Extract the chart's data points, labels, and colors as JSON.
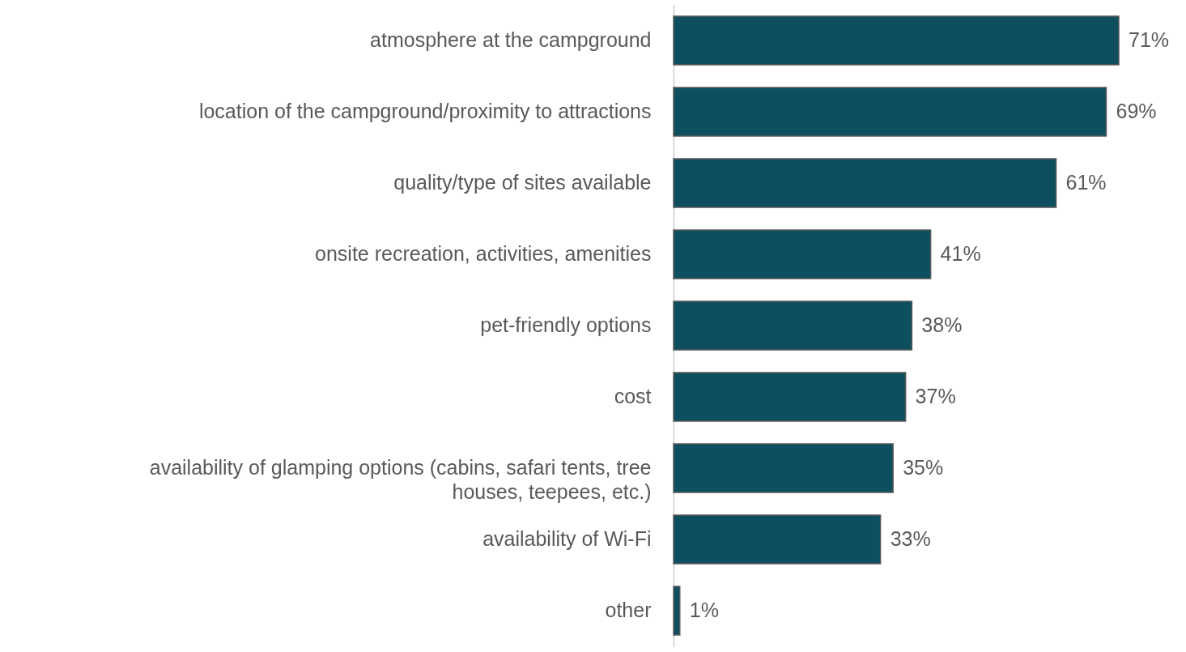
{
  "chart_data": {
    "type": "bar",
    "orientation": "horizontal",
    "categories": [
      "atmosphere at the campground",
      "location of the campground/proximity to attractions",
      "quality/type of sites available",
      "onsite recreation, activities, amenities",
      "pet-friendly options",
      "cost",
      "availability of glamping options (cabins, safari tents, tree houses, teepees, etc.)",
      "availability of Wi-Fi",
      "other"
    ],
    "values": [
      71,
      69,
      61,
      41,
      38,
      37,
      35,
      33,
      1
    ],
    "value_labels": [
      "71%",
      "69%",
      "61%",
      "41%",
      "38%",
      "37%",
      "35%",
      "33%",
      "1%"
    ],
    "color": "#0d4f5f"
  }
}
